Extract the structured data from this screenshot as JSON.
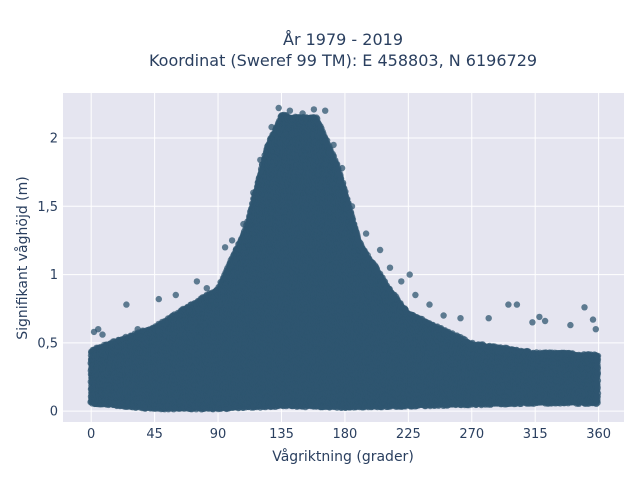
{
  "chart_data": {
    "type": "scatter",
    "title": "År 1979 - 2019",
    "subtitle": "Koordinat (Sweref 99 TM): E 458803, N 6196729",
    "xlabel": "Vågriktning (grader)",
    "ylabel": "Signifikant våghöjd (m)",
    "xlim": [
      -20,
      378
    ],
    "ylim": [
      -0.08,
      2.33
    ],
    "grid": true,
    "x_ticks": [
      0,
      45,
      90,
      135,
      180,
      225,
      270,
      315,
      360
    ],
    "x_tick_labels": [
      "0",
      "45",
      "90",
      "135",
      "180",
      "225",
      "270",
      "315",
      "360"
    ],
    "y_ticks": [
      0,
      0.5,
      1,
      1.5,
      2
    ],
    "y_tick_labels": [
      "0",
      "0,5",
      "1",
      "1,5",
      "2"
    ],
    "colors": {
      "marker": "#2f5670",
      "plot_bg": "#e5e5f0",
      "grid": "#ffffff",
      "text": "#2a3f5f"
    },
    "marker_opacity": 0.75,
    "series": [
      {
        "x_range": [
          0,
          360
        ],
        "dense_band_min": [
          [
            0,
            0.06
          ],
          [
            45,
            0.02
          ],
          [
            90,
            0.02
          ],
          [
            135,
            0.04
          ],
          [
            180,
            0.03
          ],
          [
            225,
            0.04
          ],
          [
            270,
            0.05
          ],
          [
            315,
            0.06
          ],
          [
            360,
            0.06
          ]
        ],
        "dense_band_max": [
          [
            0,
            0.45
          ],
          [
            45,
            0.62
          ],
          [
            90,
            0.9
          ],
          [
            110,
            1.35
          ],
          [
            125,
            1.95
          ],
          [
            135,
            2.17
          ],
          [
            160,
            2.15
          ],
          [
            175,
            1.8
          ],
          [
            190,
            1.25
          ],
          [
            210,
            0.92
          ],
          [
            225,
            0.72
          ],
          [
            270,
            0.5
          ],
          [
            315,
            0.43
          ],
          [
            360,
            0.42
          ]
        ],
        "outliers": [
          {
            "x": 2,
            "y": 0.58
          },
          {
            "x": 5,
            "y": 0.6
          },
          {
            "x": 8,
            "y": 0.56
          },
          {
            "x": 25,
            "y": 0.78
          },
          {
            "x": 33,
            "y": 0.6
          },
          {
            "x": 48,
            "y": 0.82
          },
          {
            "x": 60,
            "y": 0.85
          },
          {
            "x": 75,
            "y": 0.95
          },
          {
            "x": 82,
            "y": 0.9
          },
          {
            "x": 95,
            "y": 1.2
          },
          {
            "x": 100,
            "y": 1.25
          },
          {
            "x": 108,
            "y": 1.37
          },
          {
            "x": 115,
            "y": 1.6
          },
          {
            "x": 120,
            "y": 1.84
          },
          {
            "x": 128,
            "y": 2.08
          },
          {
            "x": 133,
            "y": 2.22
          },
          {
            "x": 141,
            "y": 2.2
          },
          {
            "x": 150,
            "y": 2.18
          },
          {
            "x": 158,
            "y": 2.21
          },
          {
            "x": 166,
            "y": 2.2
          },
          {
            "x": 172,
            "y": 1.95
          },
          {
            "x": 178,
            "y": 1.78
          },
          {
            "x": 185,
            "y": 1.5
          },
          {
            "x": 195,
            "y": 1.3
          },
          {
            "x": 205,
            "y": 1.18
          },
          {
            "x": 212,
            "y": 1.05
          },
          {
            "x": 220,
            "y": 0.95
          },
          {
            "x": 226,
            "y": 1.0
          },
          {
            "x": 230,
            "y": 0.85
          },
          {
            "x": 240,
            "y": 0.78
          },
          {
            "x": 250,
            "y": 0.7
          },
          {
            "x": 262,
            "y": 0.68
          },
          {
            "x": 282,
            "y": 0.68
          },
          {
            "x": 296,
            "y": 0.78
          },
          {
            "x": 302,
            "y": 0.78
          },
          {
            "x": 313,
            "y": 0.65
          },
          {
            "x": 318,
            "y": 0.69
          },
          {
            "x": 322,
            "y": 0.66
          },
          {
            "x": 340,
            "y": 0.63
          },
          {
            "x": 350,
            "y": 0.76
          },
          {
            "x": 356,
            "y": 0.67
          },
          {
            "x": 358,
            "y": 0.6
          }
        ]
      }
    ]
  }
}
